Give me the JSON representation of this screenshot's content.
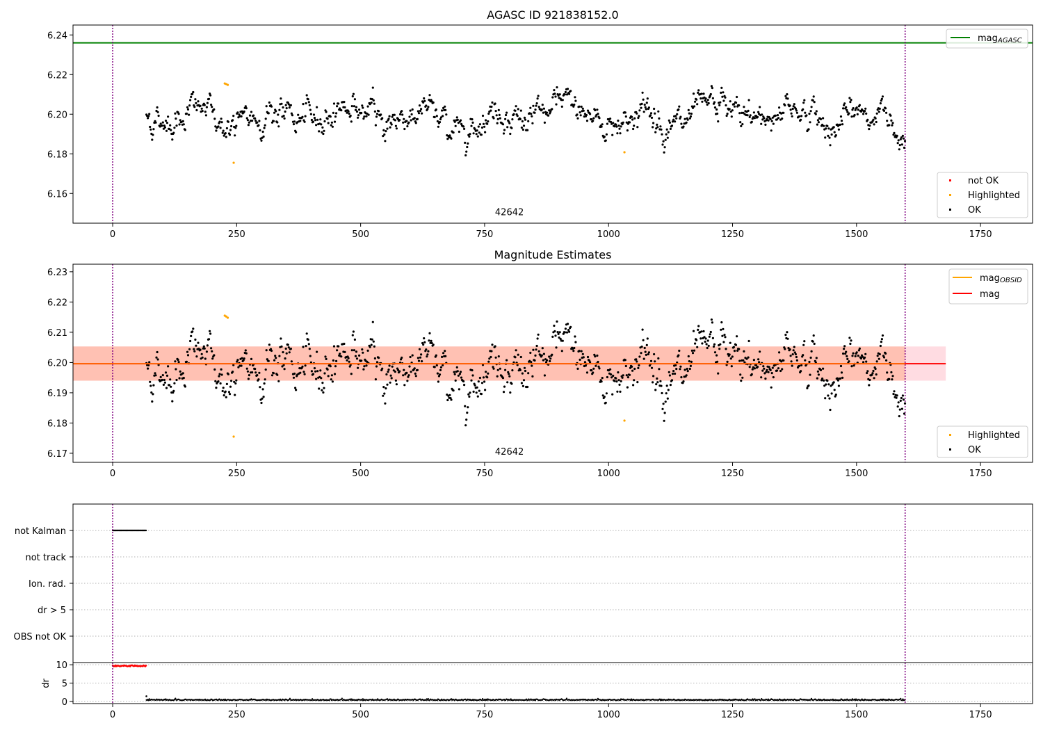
{
  "chart_data": [
    {
      "type": "scatter",
      "title": "AGASC ID 921838152.0",
      "xlim": [
        -80,
        1855
      ],
      "ylim": [
        6.145,
        6.245
      ],
      "x_ticks": [
        0,
        250,
        500,
        750,
        1000,
        1250,
        1500,
        1750
      ],
      "y_ticks": [
        6.16,
        6.18,
        6.2,
        6.22,
        6.24
      ],
      "y_tick_labels": [
        "6.16",
        "6.18",
        "6.20",
        "6.22",
        "6.24"
      ],
      "obsid_label": "42642",
      "obsid_label_pos": [
        800,
        6.149
      ],
      "vlines": [
        0,
        1598
      ],
      "mag_agasc": 6.236,
      "ok_series": {
        "name": "OK",
        "x_range": [
          68,
          1598
        ],
        "baseline": 6.199,
        "amplitude": 0.006,
        "waves": [
          {
            "period": 150,
            "amp": 0.004
          },
          {
            "period": 420,
            "amp": 0.002
          }
        ]
      },
      "highlighted": [
        {
          "x": 226,
          "y": 6.2155
        },
        {
          "x": 229,
          "y": 6.2152
        },
        {
          "x": 232,
          "y": 6.2148
        },
        {
          "x": 244,
          "y": 6.1755
        },
        {
          "x": 1032,
          "y": 6.1808
        }
      ],
      "legend_top": [
        {
          "label": "mag",
          "sub": "AGASC",
          "color": "#008000"
        }
      ],
      "legend_bottom": [
        {
          "label": "not OK",
          "color": "#ff0000"
        },
        {
          "label": "Highlighted",
          "color": "#ffa500"
        },
        {
          "label": "OK",
          "color": "#000000"
        }
      ]
    },
    {
      "type": "scatter",
      "title": "Magnitude Estimates",
      "xlim": [
        -80,
        1855
      ],
      "ylim": [
        6.167,
        6.2325
      ],
      "x_ticks": [
        0,
        250,
        500,
        750,
        1000,
        1250,
        1500,
        1750
      ],
      "y_ticks": [
        6.17,
        6.18,
        6.19,
        6.2,
        6.21,
        6.22,
        6.23
      ],
      "y_tick_labels": [
        "6.17",
        "6.18",
        "6.19",
        "6.20",
        "6.21",
        "6.22",
        "6.23"
      ],
      "obsid_label": "42642",
      "obsid_label_pos": [
        800,
        6.1695
      ],
      "vlines": [
        0,
        1598
      ],
      "mag": 6.1996,
      "mag_band": [
        6.194,
        6.2053
      ],
      "mag_band_x_end": 1680,
      "obsid_band_x": [
        -80,
        1598
      ],
      "highlighted": [
        {
          "x": 226,
          "y": 6.2155
        },
        {
          "x": 229,
          "y": 6.2152
        },
        {
          "x": 232,
          "y": 6.2148
        },
        {
          "x": 244,
          "y": 6.1755
        },
        {
          "x": 1032,
          "y": 6.1808
        }
      ],
      "legend_top": [
        {
          "label": "mag",
          "sub": "OBSID",
          "color": "#ffa500"
        },
        {
          "label": "mag",
          "sub": "",
          "color": "#ff0000"
        }
      ],
      "legend_bottom": [
        {
          "label": "Highlighted",
          "color": "#ffa500"
        },
        {
          "label": "OK",
          "color": "#000000"
        }
      ]
    },
    {
      "type": "scatter",
      "xlim": [
        -80,
        1855
      ],
      "flag_labels": [
        "not Kalman",
        "not track",
        "Ion. rad.",
        "dr > 5",
        "OBS not OK"
      ],
      "not_kalman_x_range": [
        0,
        68
      ],
      "vlines": [
        0,
        1598
      ]
    },
    {
      "type": "scatter",
      "ylabel": "dr",
      "xlim": [
        -80,
        1855
      ],
      "ylim": [
        -0.6,
        10.6
      ],
      "y_ticks": [
        0,
        5,
        10
      ],
      "y_tick_labels": [
        "0",
        "5",
        "10"
      ],
      "x_ticks": [
        0,
        250,
        500,
        750,
        1000,
        1250,
        1500,
        1750
      ],
      "dr_high": {
        "x_range": [
          0,
          68
        ],
        "value": 9.7,
        "color": "#ff0000"
      },
      "dr_low": {
        "x_range": [
          68,
          1598
        ],
        "value": 0.3,
        "color": "#000000"
      },
      "vlines": [
        0,
        1598
      ]
    }
  ],
  "colors": {
    "purple_vline": "#800080",
    "band_orange": "#ffa07a",
    "band_pink": "#ffc0cb"
  }
}
